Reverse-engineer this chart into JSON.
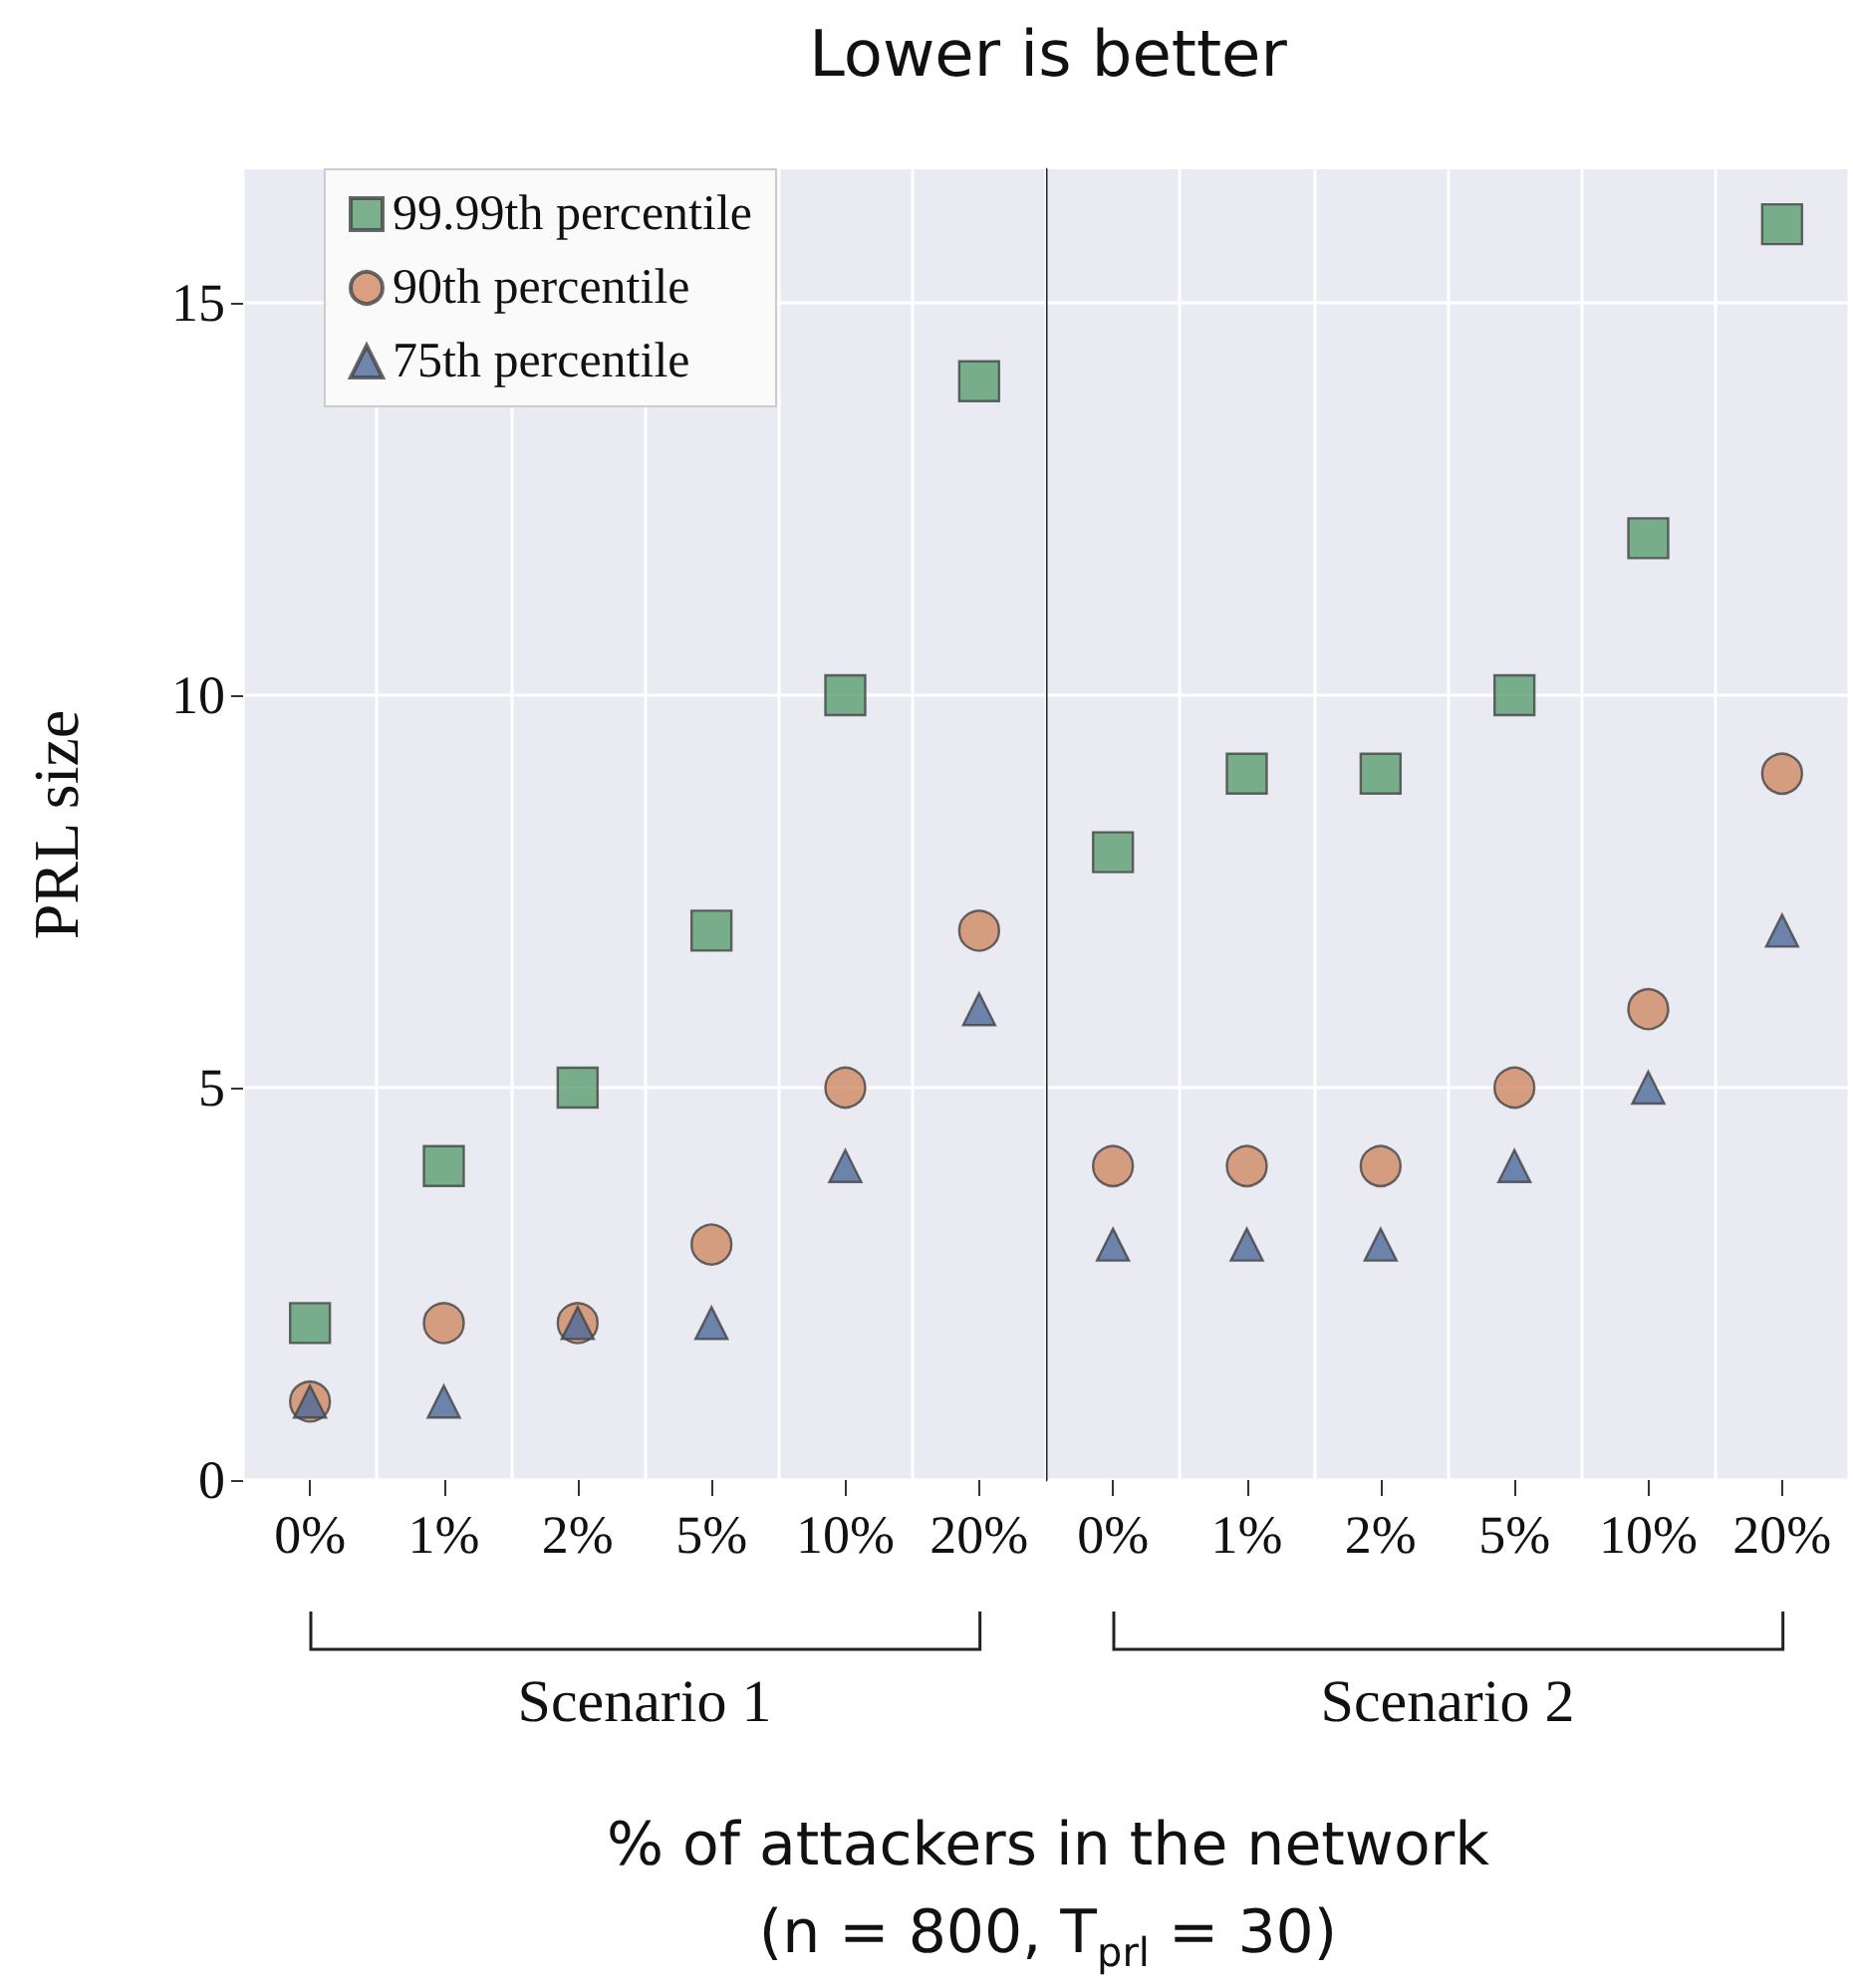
{
  "chart_data": [
    {
      "type": "scatter",
      "title": "Lower is better",
      "xlabel": "% of attackers in the network\n(n = 800, T$_{prl}$ = 30)",
      "ylabel": "PRL size",
      "categories": [
        "0%",
        "1%",
        "2%",
        "5%",
        "10%",
        "20%"
      ],
      "ylim": [
        0,
        16.7
      ],
      "yticks": [
        0,
        5,
        10,
        15
      ],
      "series": [
        {
          "name": "99.99th percentile",
          "color": "#5a9e6f",
          "marker": "square",
          "values": [
            2,
            4,
            5,
            7,
            10,
            14
          ]
        },
        {
          "name": "90th percentile",
          "color": "#d08a63",
          "marker": "circle",
          "values": [
            1,
            2,
            2,
            3,
            5,
            7
          ]
        },
        {
          "name": "75th percentile",
          "color": "#4c6a9a",
          "marker": "triangle",
          "values": [
            1,
            1,
            2,
            2,
            4,
            6
          ]
        }
      ],
      "annotations": [
        "Scenario 1"
      ],
      "grid": true,
      "legend": "top left"
    },
    {
      "type": "scatter",
      "categories": [
        "0%",
        "1%",
        "2%",
        "5%",
        "10%",
        "20%"
      ],
      "ylim": [
        0,
        16.7
      ],
      "yticks": [
        0,
        5,
        10,
        15
      ],
      "tick_labels": "x",
      "series": [
        {
          "color": "#5a9e6f",
          "marker": "square",
          "values": [
            8,
            9,
            9,
            10,
            12,
            16
          ]
        },
        {
          "color": "#d08a63",
          "marker": "circle",
          "values": [
            4,
            4,
            4,
            5,
            6,
            9
          ]
        },
        {
          "color": "#4c6a9a",
          "marker": "triangle",
          "values": [
            3,
            3,
            3,
            4,
            5,
            7
          ]
        }
      ],
      "annotations": [
        "Scenario 2"
      ],
      "grid": true
    }
  ]
}
